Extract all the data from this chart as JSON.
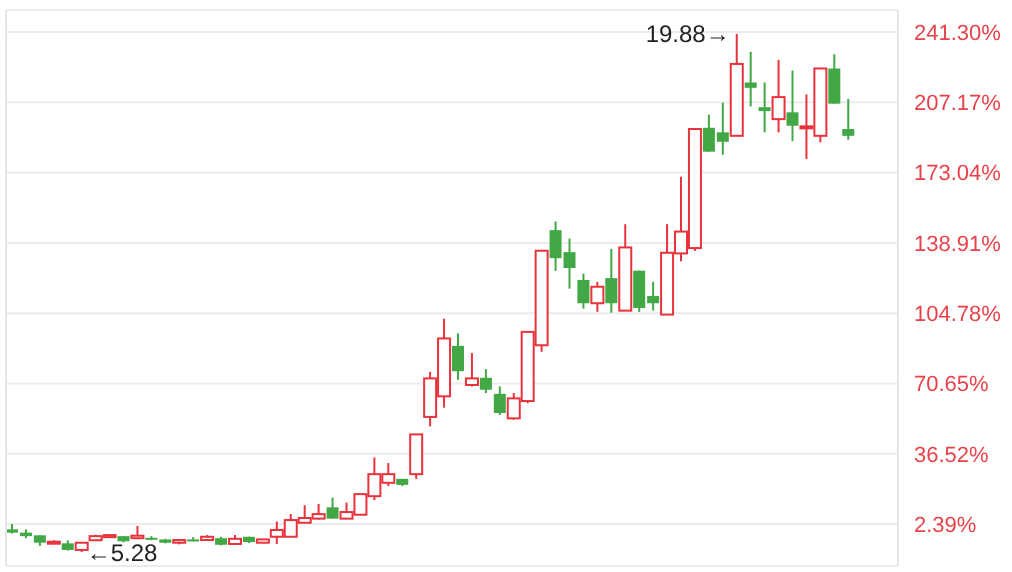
{
  "chart_data": {
    "type": "candlestick",
    "categories": [
      null,
      null,
      null,
      null,
      null,
      null,
      null,
      null,
      null,
      null,
      null,
      null,
      null,
      null,
      null,
      null,
      null,
      null,
      null,
      null,
      null,
      null,
      null,
      null,
      null,
      null,
      null,
      null,
      null,
      null,
      null,
      null,
      null,
      null,
      null,
      null,
      null,
      null,
      null,
      null,
      null,
      null,
      null,
      null,
      null,
      null,
      null,
      null,
      null,
      null,
      null,
      null,
      null,
      null,
      null,
      null,
      null,
      null,
      null,
      null,
      null
    ],
    "ohlc": [
      [
        -0.2,
        2.4,
        -2.2,
        -1.8
      ],
      [
        -1.8,
        -0.2,
        -4.5,
        -3.5
      ],
      [
        -3.1,
        -3.1,
        -8.3,
        -6.7
      ],
      [
        -6.7,
        -5.5,
        -7.5,
        -6.2
      ],
      [
        -7,
        -5.5,
        -10.5,
        -10.2
      ],
      [
        -10.2,
        -6.7,
        -11.2,
        -6.7
      ],
      [
        -5.5,
        -2.8,
        -5.8,
        -3.5
      ],
      [
        -4,
        -2.5,
        -4.3,
        -3
      ],
      [
        -3.5,
        -3.5,
        -6.5,
        -6
      ],
      [
        -4.5,
        1.4,
        -5,
        -3.3
      ],
      [
        -4.3,
        -3.5,
        -5.5,
        -4.6
      ],
      [
        -5.1,
        -4.8,
        -7,
        -6.7
      ],
      [
        -6.7,
        -5,
        -7.5,
        -5.4
      ],
      [
        -5.1,
        -4,
        -6,
        -5.7
      ],
      [
        -5.4,
        -3,
        -5.8,
        -3.8
      ],
      [
        -4.5,
        -3.8,
        -8,
        -7.7
      ],
      [
        -7.3,
        -3,
        -7.5,
        -4.8
      ],
      [
        -3.8,
        -3.8,
        -6.8,
        -6.4
      ],
      [
        -6.7,
        -5,
        -6.8,
        -5.1
      ],
      [
        -3.8,
        3.6,
        -7.3,
        -0.5
      ],
      [
        -3.8,
        7.2,
        -3.8,
        4.3
      ],
      [
        3,
        11.5,
        3,
        5.3
      ],
      [
        5,
        12.1,
        4.6,
        7.2
      ],
      [
        10.5,
        15.2,
        5,
        5
      ],
      [
        5,
        12.8,
        5,
        8.2
      ],
      [
        6.9,
        16.9,
        6.9,
        16.9
      ],
      [
        15.9,
        34.7,
        14,
        26.6
      ],
      [
        22.4,
        32,
        20.8,
        26.6
      ],
      [
        24.3,
        24.3,
        20.8,
        21.4
      ],
      [
        26.6,
        45.9,
        24.3,
        45.9
      ],
      [
        54.4,
        76.3,
        49.8,
        73.1
      ],
      [
        64.4,
        102.1,
        58.9,
        92.5
      ],
      [
        88.9,
        95,
        72.4,
        76.6
      ],
      [
        69.9,
        85.4,
        69.2,
        73.1
      ],
      [
        73.4,
        77.6,
        66,
        67.6
      ],
      [
        65.6,
        69.2,
        55.3,
        56.3
      ],
      [
        53.7,
        66,
        53,
        63.4
      ],
      [
        62.1,
        95.7,
        61.1,
        95.7
      ],
      [
        89.2,
        135.1,
        86,
        135.1
      ],
      [
        145.1,
        149.3,
        125.3,
        131.5
      ],
      [
        134.4,
        141,
        116.7,
        126.7
      ],
      [
        120.9,
        124,
        107,
        109.6
      ],
      [
        109.6,
        120,
        105.4,
        117.6
      ],
      [
        121.8,
        136,
        105,
        109.6
      ],
      [
        106,
        148,
        106,
        136.7
      ],
      [
        125.4,
        125.4,
        105.4,
        107.3
      ],
      [
        113.1,
        120,
        106,
        109.6
      ],
      [
        104.1,
        148,
        104.1,
        134.1
      ],
      [
        133.8,
        171,
        130,
        144.4
      ],
      [
        136.4,
        194.2,
        135,
        194.2
      ],
      [
        194.8,
        201.2,
        183.2,
        183.2
      ],
      [
        192.6,
        207,
        181.7,
        188
      ],
      [
        190.9,
        240.4,
        190.9,
        225.8
      ],
      [
        216.8,
        231.7,
        205.2,
        214.2
      ],
      [
        204.8,
        216.8,
        192.6,
        202.9
      ],
      [
        199,
        227.8,
        192.6,
        209.7
      ],
      [
        202.3,
        222.6,
        188.3,
        195.8
      ],
      [
        194.8,
        211,
        179.7,
        195.5
      ],
      [
        190.9,
        223.6,
        187.7,
        223.6
      ],
      [
        223.6,
        230.5,
        206.5,
        206.5
      ],
      [
        194.2,
        208.8,
        189,
        190.9
      ]
    ],
    "colors": [
      "#41a845",
      "#41a845",
      "#41a845",
      "#e8333d",
      "#41a845",
      "#e8333d",
      "#e8333d",
      "#e8333d",
      "#41a845",
      "#e8333d",
      "#41a845",
      "#41a845",
      "#e8333d",
      "#41a845",
      "#e8333d",
      "#41a845",
      "#e8333d",
      "#41a845",
      "#e8333d",
      "#e8333d",
      "#e8333d",
      "#e8333d",
      "#e8333d",
      "#41a845",
      "#e8333d",
      "#e8333d",
      "#e8333d",
      "#e8333d",
      "#41a845",
      "#e8333d",
      "#e8333d",
      "#e8333d",
      "#41a845",
      "#e8333d",
      "#41a845",
      "#41a845",
      "#e8333d",
      "#e8333d",
      "#e8333d",
      "#41a845",
      "#41a845",
      "#41a845",
      "#e8333d",
      "#41a845",
      "#e8333d",
      "#41a845",
      "#41a845",
      "#e8333d",
      "#e8333d",
      "#e8333d",
      "#41a845",
      "#41a845",
      "#e8333d",
      "#41a845",
      "#41a845",
      "#e8333d",
      "#41a845",
      "#e8333d",
      "#e8333d",
      "#41a845",
      "#41a845"
    ],
    "ylim": [
      -18,
      252
    ],
    "yticks": [
      {
        "value": 2.39,
        "label": "2.39%"
      },
      {
        "value": 36.52,
        "label": "36.52%"
      },
      {
        "value": 70.65,
        "label": "70.65%"
      },
      {
        "value": 104.78,
        "label": "104.78%"
      },
      {
        "value": 138.91,
        "label": "138.91%"
      },
      {
        "value": 173.04,
        "label": "173.04%"
      },
      {
        "value": 207.17,
        "label": "207.17%"
      },
      {
        "value": 241.3,
        "label": "241.30%"
      }
    ],
    "grid": "y",
    "tick_labels": "y",
    "annotations": [
      "19.88→",
      "←5.28"
    ]
  }
}
